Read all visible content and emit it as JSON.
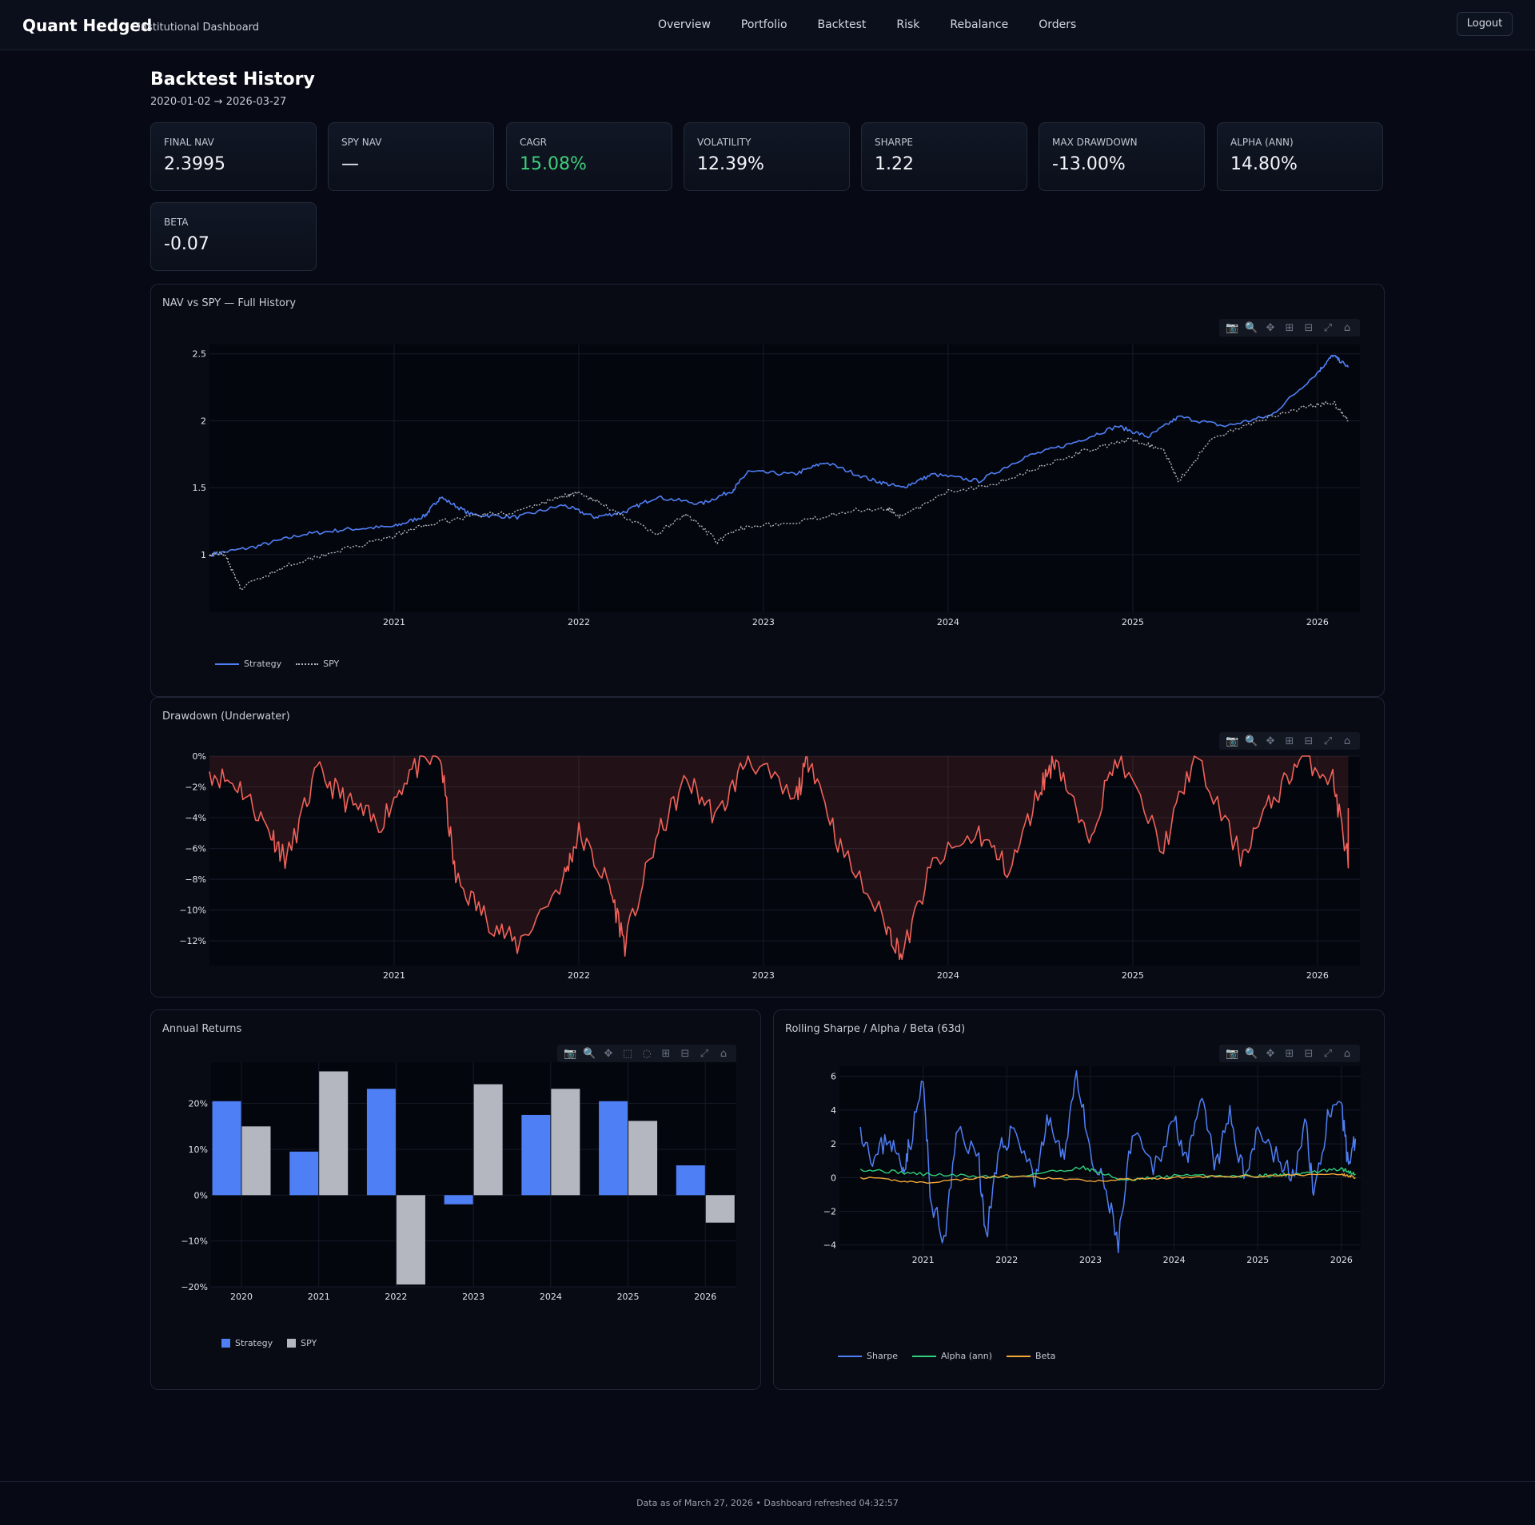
{
  "header": {
    "brand": "Quant Hedged",
    "subtitle": "Institutional Dashboard",
    "nav": [
      "Overview",
      "Portfolio",
      "Backtest",
      "Risk",
      "Rebalance",
      "Orders"
    ],
    "logout": "Logout"
  },
  "page": {
    "title": "Backtest History",
    "range": "2020-01-02 → 2026-03-27"
  },
  "kpis": [
    {
      "label": "FINAL NAV",
      "value": "2.3995"
    },
    {
      "label": "SPY NAV",
      "value": "—"
    },
    {
      "label": "CAGR",
      "value": "15.08%"
    },
    {
      "label": "VOLATILITY",
      "value": "12.39%"
    },
    {
      "label": "SHARPE",
      "value": "1.22"
    },
    {
      "label": "MAX DRAWDOWN",
      "value": "-13.00%"
    },
    {
      "label": "ALPHA (ANN)",
      "value": "14.80%"
    },
    {
      "label": "BETA",
      "value": "-0.07"
    }
  ],
  "colors": {
    "strategy": "#4f7ff5",
    "spy": "#b4b7bf",
    "drawdown": "#f0625a",
    "alpha": "#2fcf7b",
    "beta": "#f4a83a",
    "positive": "#3ecf7a"
  },
  "toolbar_icons": [
    "camera-icon",
    "zoom-icon",
    "pan-icon",
    "zoom-in-icon",
    "zoom-out-icon",
    "autoscale-icon",
    "reset-icon"
  ],
  "chart_data": [
    {
      "type": "line",
      "title": "NAV vs SPY — Full History",
      "x_ticks": [
        "2021",
        "2022",
        "2023",
        "2024",
        "2025",
        "2026"
      ],
      "y_ticks": [
        "1",
        "1.5",
        "2",
        "2.5"
      ],
      "ylim": [
        0.57,
        2.57
      ],
      "series": [
        {
          "name": "Strategy",
          "points": [
            [
              "2020-01",
              1.0
            ],
            [
              "2020-04",
              1.06
            ],
            [
              "2020-07",
              1.15
            ],
            [
              "2020-10",
              1.19
            ],
            [
              "2021-01",
              1.21
            ],
            [
              "2021-03",
              1.29
            ],
            [
              "2021-04",
              1.43
            ],
            [
              "2021-06",
              1.3
            ],
            [
              "2021-09",
              1.28
            ],
            [
              "2021-12",
              1.37
            ],
            [
              "2022-02",
              1.28
            ],
            [
              "2022-04",
              1.32
            ],
            [
              "2022-06",
              1.43
            ],
            [
              "2022-09",
              1.38
            ],
            [
              "2022-11",
              1.48
            ],
            [
              "2022-12",
              1.62
            ],
            [
              "2023-03",
              1.6
            ],
            [
              "2023-05",
              1.69
            ],
            [
              "2023-08",
              1.56
            ],
            [
              "2023-10",
              1.5
            ],
            [
              "2023-12",
              1.6
            ],
            [
              "2024-03",
              1.55
            ],
            [
              "2024-06",
              1.73
            ],
            [
              "2024-09",
              1.83
            ],
            [
              "2024-12",
              1.96
            ],
            [
              "2025-02",
              1.88
            ],
            [
              "2025-04",
              2.03
            ],
            [
              "2025-07",
              1.96
            ],
            [
              "2025-10",
              2.04
            ],
            [
              "2026-01",
              2.36
            ],
            [
              "2026-02",
              2.49
            ],
            [
              "2026-03",
              2.4
            ]
          ]
        },
        {
          "name": "SPY",
          "points": [
            [
              "2020-01",
              1.0
            ],
            [
              "2020-02",
              1.01
            ],
            [
              "2020-03",
              0.75
            ],
            [
              "2020-06",
              0.92
            ],
            [
              "2020-09",
              1.02
            ],
            [
              "2020-12",
              1.1
            ],
            [
              "2021-03",
              1.22
            ],
            [
              "2021-06",
              1.29
            ],
            [
              "2021-09",
              1.32
            ],
            [
              "2021-12",
              1.44
            ],
            [
              "2022-01",
              1.46
            ],
            [
              "2022-03",
              1.35
            ],
            [
              "2022-06",
              1.15
            ],
            [
              "2022-08",
              1.3
            ],
            [
              "2022-10",
              1.1
            ],
            [
              "2022-12",
              1.22
            ],
            [
              "2023-03",
              1.23
            ],
            [
              "2023-06",
              1.32
            ],
            [
              "2023-09",
              1.35
            ],
            [
              "2023-10",
              1.28
            ],
            [
              "2024-01",
              1.47
            ],
            [
              "2024-04",
              1.53
            ],
            [
              "2024-07",
              1.66
            ],
            [
              "2024-10",
              1.78
            ],
            [
              "2025-01",
              1.86
            ],
            [
              "2025-03",
              1.78
            ],
            [
              "2025-04",
              1.55
            ],
            [
              "2025-06",
              1.85
            ],
            [
              "2025-09",
              2.0
            ],
            [
              "2025-12",
              2.1
            ],
            [
              "2026-02",
              2.14
            ],
            [
              "2026-03",
              2.0
            ]
          ]
        }
      ],
      "legend": "bottom-left"
    },
    {
      "type": "area",
      "title": "Drawdown (Underwater)",
      "x_ticks": [
        "2021",
        "2022",
        "2023",
        "2024",
        "2025",
        "2026"
      ],
      "y_ticks": [
        "0%",
        "−2%",
        "−4%",
        "−6%",
        "−8%",
        "−10%",
        "−12%"
      ],
      "ylim": [
        -13.6,
        0
      ],
      "series": [
        {
          "name": "Drawdown",
          "points": [
            [
              "2020-01",
              -1.0
            ],
            [
              "2020-03",
              -2.0
            ],
            [
              "2020-05",
              -5.0
            ],
            [
              "2020-06",
              -6.8
            ],
            [
              "2020-08",
              -1.0
            ],
            [
              "2020-10",
              -3.0
            ],
            [
              "2020-12",
              -4.5
            ],
            [
              "2021-02",
              -1.0
            ],
            [
              "2021-04",
              0.0
            ],
            [
              "2021-05",
              -8.0
            ],
            [
              "2021-07",
              -10.5
            ],
            [
              "2021-09",
              -12.3
            ],
            [
              "2021-12",
              -8.0
            ],
            [
              "2022-01",
              -5.0
            ],
            [
              "2022-03",
              -8.5
            ],
            [
              "2022-04",
              -12.2
            ],
            [
              "2022-06",
              -5.5
            ],
            [
              "2022-08",
              -1.5
            ],
            [
              "2022-10",
              -4.0
            ],
            [
              "2022-12",
              0.0
            ],
            [
              "2023-03",
              -3.0
            ],
            [
              "2023-04",
              0.0
            ],
            [
              "2023-06",
              -6.0
            ],
            [
              "2023-09",
              -11.0
            ],
            [
              "2023-10",
              -13.0
            ],
            [
              "2023-12",
              -7.0
            ],
            [
              "2024-03",
              -5.0
            ],
            [
              "2024-05",
              -7.5
            ],
            [
              "2024-07",
              -2.0
            ],
            [
              "2024-08",
              0.0
            ],
            [
              "2024-10",
              -5.5
            ],
            [
              "2024-12",
              0.0
            ],
            [
              "2025-03",
              -6.0
            ],
            [
              "2025-05",
              0.0
            ],
            [
              "2025-08",
              -6.5
            ],
            [
              "2025-10",
              -3.0
            ],
            [
              "2025-12",
              0.0
            ],
            [
              "2026-02",
              -1.5
            ],
            [
              "2026-03",
              -6.8
            ],
            [
              "2026-03",
              -3.8
            ]
          ]
        }
      ]
    },
    {
      "type": "bar",
      "title": "Annual Returns",
      "categories": [
        "2020",
        "2021",
        "2022",
        "2023",
        "2024",
        "2025",
        "2026"
      ],
      "y_ticks": [
        "20%",
        "10%",
        "0%",
        "−10%",
        "−20%"
      ],
      "ylim": [
        -20,
        29
      ],
      "series": [
        {
          "name": "Strategy",
          "values": [
            20.5,
            9.5,
            23.2,
            -2.0,
            17.5,
            20.5,
            6.5
          ]
        },
        {
          "name": "SPY",
          "values": [
            15.0,
            27.0,
            -19.5,
            24.2,
            23.2,
            16.2,
            -6.0
          ]
        }
      ],
      "legend": "bottom-left"
    },
    {
      "type": "line",
      "title": "Rolling Sharpe / Alpha / Beta (63d)",
      "x_ticks": [
        "2021",
        "2022",
        "2023",
        "2024",
        "2025",
        "2026"
      ],
      "y_ticks": [
        "6",
        "4",
        "2",
        "0",
        "−2",
        "−4"
      ],
      "ylim": [
        -4.3,
        6.6
      ],
      "series": [
        {
          "name": "Sharpe",
          "points": [
            [
              "2020-04",
              3.0
            ],
            [
              "2020-06",
              1.0
            ],
            [
              "2020-08",
              2.5
            ],
            [
              "2020-10",
              0.5
            ],
            [
              "2020-11",
              1.8
            ],
            [
              "2021-01",
              5.8
            ],
            [
              "2021-02",
              -1.0
            ],
            [
              "2021-04",
              -3.9
            ],
            [
              "2021-06",
              3.0
            ],
            [
              "2021-09",
              1.0
            ],
            [
              "2021-10",
              -3.5
            ],
            [
              "2021-12",
              1.5
            ],
            [
              "2022-02",
              3.0
            ],
            [
              "2022-05",
              0.0
            ],
            [
              "2022-07",
              3.5
            ],
            [
              "2022-09",
              1.0
            ],
            [
              "2022-11",
              6.3
            ],
            [
              "2023-01",
              1.0
            ],
            [
              "2023-03",
              -0.5
            ],
            [
              "2023-05",
              -3.9
            ],
            [
              "2023-07",
              2.5
            ],
            [
              "2023-10",
              0.5
            ],
            [
              "2024-01",
              3.5
            ],
            [
              "2024-03",
              1.0
            ],
            [
              "2024-05",
              4.5
            ],
            [
              "2024-07",
              0.5
            ],
            [
              "2024-09",
              3.8
            ],
            [
              "2024-11",
              0.0
            ],
            [
              "2025-01",
              3.0
            ],
            [
              "2025-04",
              1.0
            ],
            [
              "2025-06",
              0.0
            ],
            [
              "2025-08",
              3.2
            ],
            [
              "2025-09",
              -1.2
            ],
            [
              "2025-11",
              3.5
            ],
            [
              "2026-01",
              4.0
            ],
            [
              "2026-02",
              0.8
            ],
            [
              "2026-03",
              2.3
            ]
          ]
        },
        {
          "name": "Alpha (ann)",
          "points": [
            [
              "2020-04",
              0.5
            ],
            [
              "2021-01",
              0.2
            ],
            [
              "2022-01",
              0.0
            ],
            [
              "2022-12",
              0.6
            ],
            [
              "2023-06",
              -0.2
            ],
            [
              "2024-01",
              0.1
            ],
            [
              "2025-01",
              0.1
            ],
            [
              "2025-06",
              0.2
            ],
            [
              "2026-01",
              0.5
            ],
            [
              "2026-03",
              0.2
            ]
          ]
        },
        {
          "name": "Beta",
          "points": [
            [
              "2020-04",
              0.0
            ],
            [
              "2021-01",
              -0.3
            ],
            [
              "2022-01",
              0.1
            ],
            [
              "2023-01",
              -0.2
            ],
            [
              "2024-01",
              0.0
            ],
            [
              "2025-01",
              0.1
            ],
            [
              "2026-01",
              0.2
            ],
            [
              "2026-03",
              0.0
            ]
          ]
        }
      ],
      "legend": "bottom-left"
    }
  ],
  "footer": "Data as of March 27, 2026 • Dashboard refreshed 04:32:57"
}
